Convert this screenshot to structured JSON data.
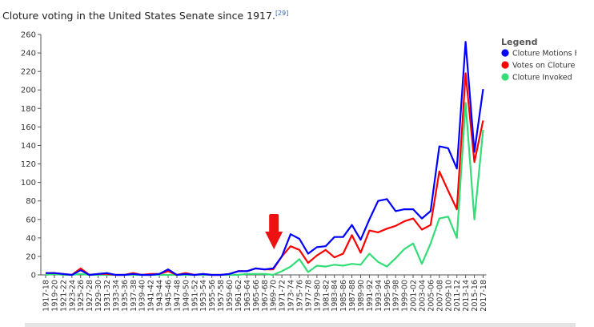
{
  "caption": {
    "text": "Cloture voting in the United States Senate since 1917.",
    "ref": "[29]"
  },
  "chart_data": {
    "type": "line",
    "title": "Cloture voting in the United States Senate since 1917.",
    "xlabel": "",
    "ylabel": "",
    "ylim": [
      0,
      260
    ],
    "yticks": [
      0,
      20,
      40,
      60,
      80,
      100,
      120,
      140,
      160,
      180,
      200,
      220,
      240,
      260
    ],
    "grid": false,
    "legend_title": "Legend",
    "legend_position": "top-right",
    "categories": [
      "1917-18",
      "1919-20",
      "1921-22",
      "1923-24",
      "1925-26",
      "1927-28",
      "1929-30",
      "1931-32",
      "1933-34",
      "1935-36",
      "1937-38",
      "1939-40",
      "1941-42",
      "1943-44",
      "1945-46",
      "1947-48",
      "1949-50",
      "1951-52",
      "1953-54",
      "1955-56",
      "1957-58",
      "1959-60",
      "1961-62",
      "1963-64",
      "1965-66",
      "1967-68",
      "1969-70",
      "1971-72",
      "1973-74",
      "1975-76",
      "1977-78",
      "1979-80",
      "1981-82",
      "1983-84",
      "1985-86",
      "1987-88",
      "1989-90",
      "1991-92",
      "1993-94",
      "1995-96",
      "1997-98",
      "1999-00",
      "2001-02",
      "2003-04",
      "2005-06",
      "2007-08",
      "2009-10",
      "2011-12",
      "2013-14",
      "2015-16",
      "2017-18"
    ],
    "series": [
      {
        "name": "Cloture Motions Filed",
        "color": "#0000ff",
        "values": [
          2,
          2,
          1,
          0,
          5,
          0,
          1,
          2,
          0,
          0,
          1,
          0,
          0,
          1,
          6,
          0,
          1,
          0,
          1,
          0,
          0,
          1,
          4,
          4,
          7,
          6,
          7,
          20,
          44,
          39,
          23,
          30,
          31,
          41,
          41,
          54,
          38,
          60,
          80,
          82,
          69,
          71,
          71,
          61,
          69,
          139,
          137,
          115,
          252,
          133,
          201
        ]
      },
      {
        "name": "Votes on Cloture",
        "color": "#ff0000",
        "values": [
          2,
          2,
          1,
          0,
          7,
          0,
          1,
          1,
          0,
          0,
          2,
          0,
          1,
          1,
          4,
          0,
          2,
          0,
          1,
          0,
          0,
          1,
          4,
          4,
          7,
          6,
          6,
          20,
          31,
          27,
          13,
          21,
          27,
          19,
          23,
          43,
          24,
          48,
          46,
          50,
          53,
          58,
          61,
          49,
          54,
          112,
          91,
          71,
          218,
          122,
          167
        ]
      },
      {
        "name": "Cloture Invoked",
        "color": "#33dd77",
        "values": [
          0,
          1,
          0,
          0,
          1,
          0,
          0,
          0,
          0,
          0,
          0,
          0,
          0,
          0,
          0,
          0,
          0,
          0,
          0,
          0,
          0,
          0,
          0,
          1,
          1,
          1,
          0,
          4,
          9,
          17,
          3,
          10,
          9,
          11,
          10,
          12,
          11,
          23,
          14,
          9,
          18,
          28,
          34,
          12,
          34,
          61,
          63,
          40,
          186,
          60,
          157
        ]
      }
    ],
    "annotations": [
      {
        "type": "arrow",
        "color": "#ee1111",
        "direction": "down",
        "at_category": "1969-70"
      }
    ]
  }
}
